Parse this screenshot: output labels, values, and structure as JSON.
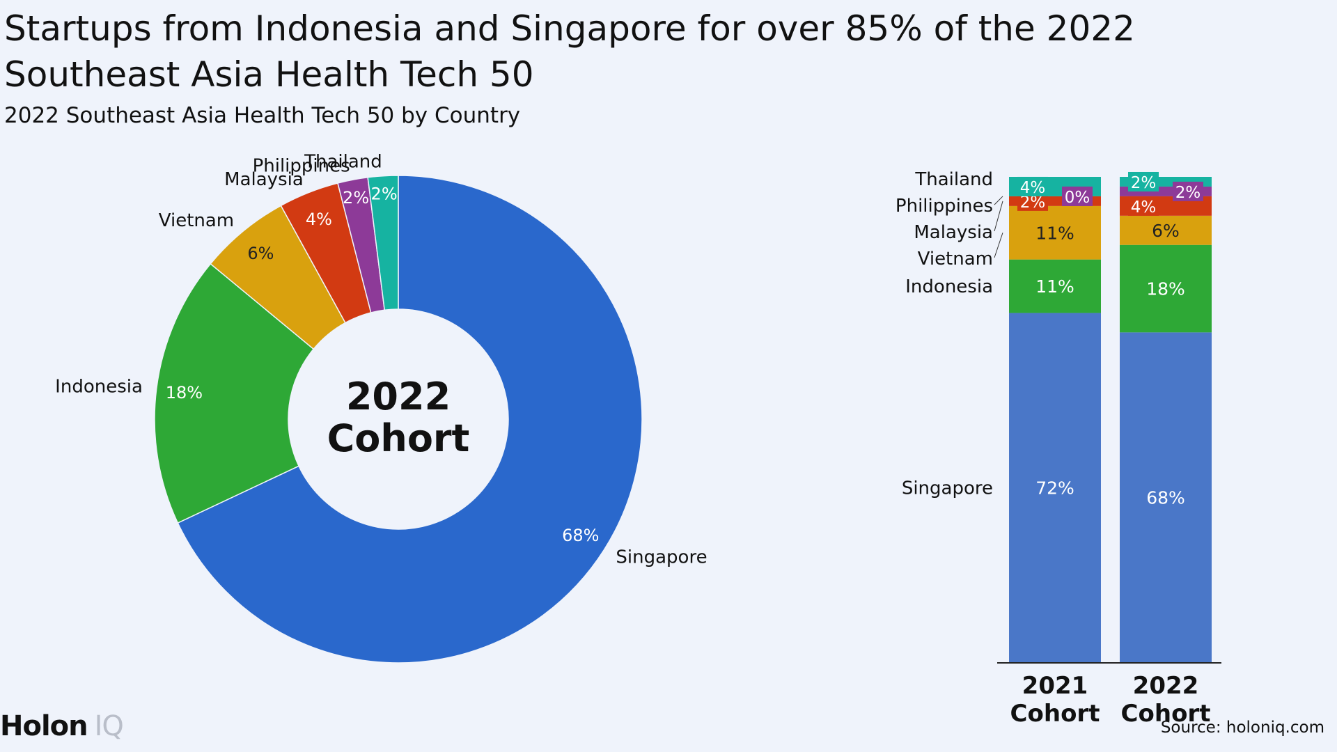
{
  "title": "Startups from Indonesia and Singapore for over 85% of the 2022 Southeast Asia Health Tech 50",
  "subtitle": "2022 Southeast Asia Health Tech 50 by Country",
  "donut_center": {
    "line1": "2022",
    "line2": "Cohort"
  },
  "brand": {
    "main": "Holon",
    "suffix": "IQ"
  },
  "source": "Source: holoniq.com",
  "colors": {
    "Singapore": "#2a68cc",
    "Indonesia": "#2ea836",
    "Vietnam": "#d9a10e",
    "Malaysia": "#d23a12",
    "Philippines": "#8d3a98",
    "Thailand": "#16b3a1",
    "bar_singapore": "#4a77c8"
  },
  "chart_data": [
    {
      "type": "pie",
      "categories": [
        "Singapore",
        "Indonesia",
        "Vietnam",
        "Malaysia",
        "Philippines",
        "Thailand"
      ],
      "values": [
        68,
        18,
        6,
        4,
        2,
        2
      ],
      "value_labels": [
        "68%",
        "18%",
        "6%",
        "4%",
        "2%",
        "2%"
      ]
    },
    {
      "type": "bar",
      "stacked": true,
      "categories": [
        "2021 Cohort",
        "2022 Cohort"
      ],
      "category_lines": [
        [
          "2021",
          "Cohort"
        ],
        [
          "2022",
          "Cohort"
        ]
      ],
      "series": [
        {
          "name": "Singapore",
          "values": [
            72,
            68
          ],
          "labels": [
            "72%",
            "68%"
          ]
        },
        {
          "name": "Indonesia",
          "values": [
            11,
            18
          ],
          "labels": [
            "11%",
            "18%"
          ]
        },
        {
          "name": "Vietnam",
          "values": [
            11,
            6
          ],
          "labels": [
            "11%",
            "6%"
          ]
        },
        {
          "name": "Malaysia",
          "values": [
            2,
            4
          ],
          "labels": [
            "2%",
            "4%"
          ]
        },
        {
          "name": "Philippines",
          "values": [
            0,
            2
          ],
          "labels": [
            "0%",
            "2%"
          ]
        },
        {
          "name": "Thailand",
          "values": [
            4,
            2
          ],
          "labels": [
            "4%",
            "2%"
          ]
        }
      ],
      "ylim": [
        0,
        100
      ]
    }
  ]
}
